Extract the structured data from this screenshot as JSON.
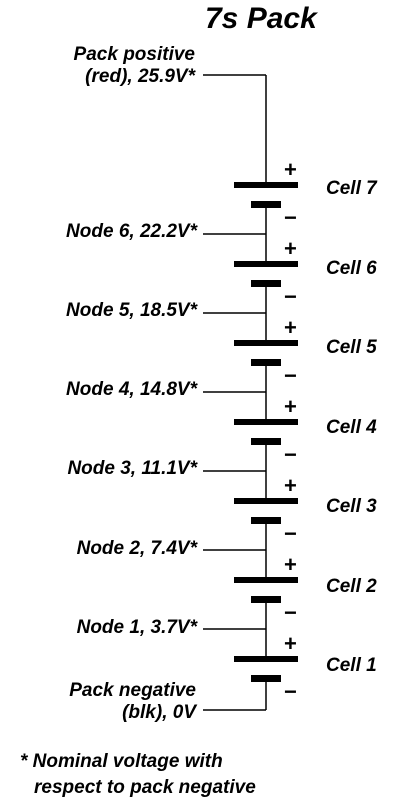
{
  "title": "7s Pack",
  "pack_positive": {
    "line1": "Pack positive",
    "line2": "(red), 25.9V*"
  },
  "pack_negative": {
    "line1": "Pack negative",
    "line2": "(blk), 0V"
  },
  "nodes": [
    "Node 6, 22.2V*",
    "Node 5, 18.5V*",
    "Node 4, 14.8V*",
    "Node 3, 11.1V*",
    "Node 2, 7.4V*",
    "Node 1, 3.7V*"
  ],
  "cells": [
    "Cell 7",
    "Cell 6",
    "Cell 5",
    "Cell 4",
    "Cell 3",
    "Cell 2",
    "Cell 1"
  ],
  "plus_sign": "+",
  "minus_sign": "−",
  "footnote": {
    "line1": "* Nominal voltage with",
    "line2": "respect to pack negative"
  }
}
